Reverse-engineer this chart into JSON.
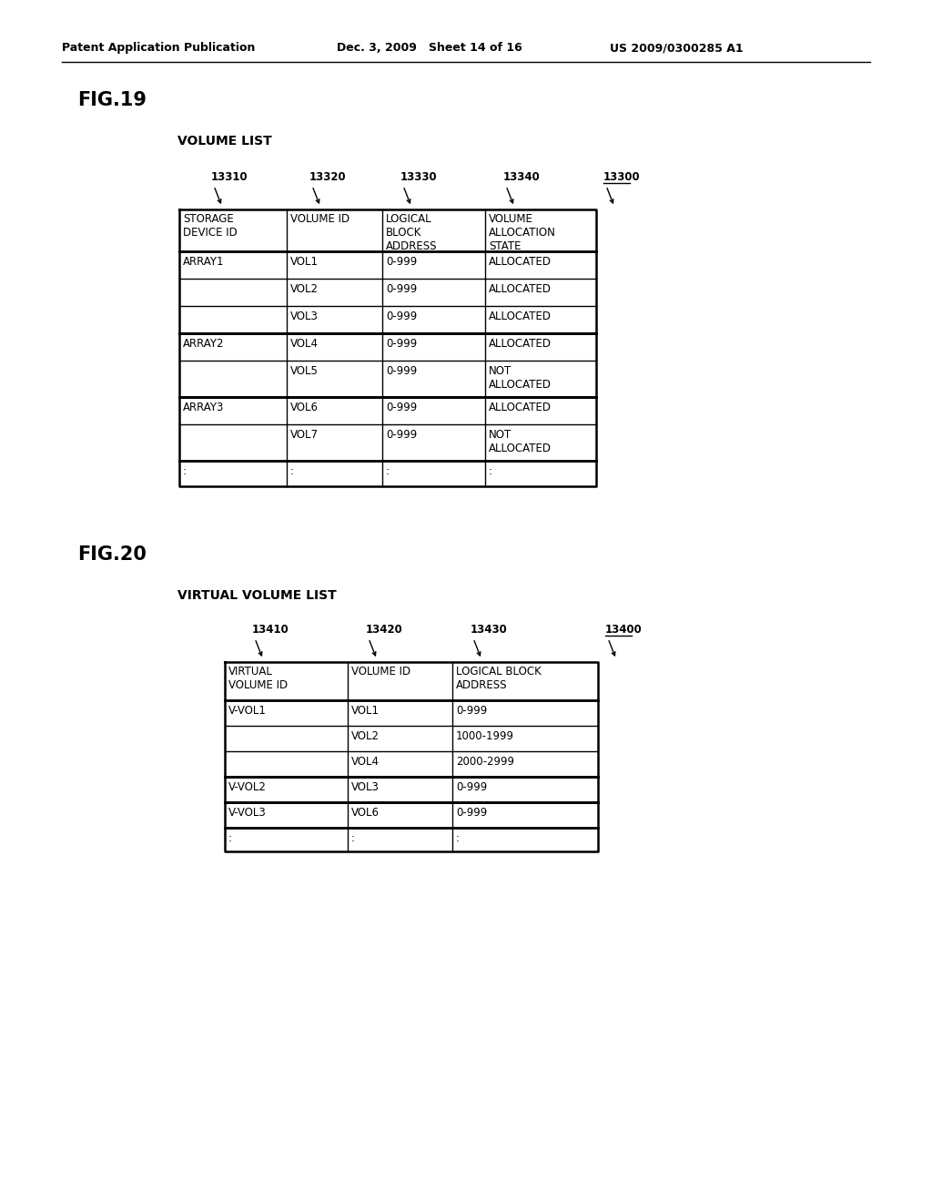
{
  "header_text_left": "Patent Application Publication",
  "header_text_mid": "Dec. 3, 2009   Sheet 14 of 16",
  "header_text_right": "US 2009/0300285 A1",
  "fig19_label": "FIG.19",
  "fig19_subtitle": "VOLUME LIST",
  "fig19_col_labels": [
    "13310",
    "13320",
    "13330",
    "13340",
    "13300"
  ],
  "fig19_col_headers": [
    "STORAGE\nDEVICE ID",
    "VOLUME ID",
    "LOGICAL\nBLOCK\nADDRESS",
    "VOLUME\nALLOCATION\nSTATE"
  ],
  "fig19_rows": [
    [
      "ARRAY1",
      "VOL1",
      "0-999",
      "ALLOCATED"
    ],
    [
      "",
      "VOL2",
      "0-999",
      "ALLOCATED"
    ],
    [
      "",
      "VOL3",
      "0-999",
      "ALLOCATED"
    ],
    [
      "ARRAY2",
      "VOL4",
      "0-999",
      "ALLOCATED"
    ],
    [
      "",
      "VOL5",
      "0-999",
      "NOT\nALLOCATED"
    ],
    [
      "ARRAY3",
      "VOL6",
      "0-999",
      "ALLOCATED"
    ],
    [
      "",
      "VOL7",
      "0-999",
      "NOT\nALLOCATED"
    ],
    [
      ":",
      ":",
      ":",
      ":"
    ]
  ],
  "fig20_label": "FIG.20",
  "fig20_subtitle": "VIRTUAL VOLUME LIST",
  "fig20_col_labels": [
    "13410",
    "13420",
    "13430",
    "13400"
  ],
  "fig20_col_headers": [
    "VIRTUAL\nVOLUME ID",
    "VOLUME ID",
    "LOGICAL BLOCK\nADDRESS"
  ],
  "fig20_rows": [
    [
      "V-VOL1",
      "VOL1",
      "0-999"
    ],
    [
      "",
      "VOL2",
      "1000-1999"
    ],
    [
      "",
      "VOL4",
      "2000-2999"
    ],
    [
      "V-VOL2",
      "VOL3",
      "0-999"
    ],
    [
      "V-VOL3",
      "VOL6",
      "0-999"
    ],
    [
      ":",
      ":",
      ":"
    ]
  ],
  "bg_color": "#ffffff",
  "text_color": "#000000",
  "line_color": "#000000"
}
